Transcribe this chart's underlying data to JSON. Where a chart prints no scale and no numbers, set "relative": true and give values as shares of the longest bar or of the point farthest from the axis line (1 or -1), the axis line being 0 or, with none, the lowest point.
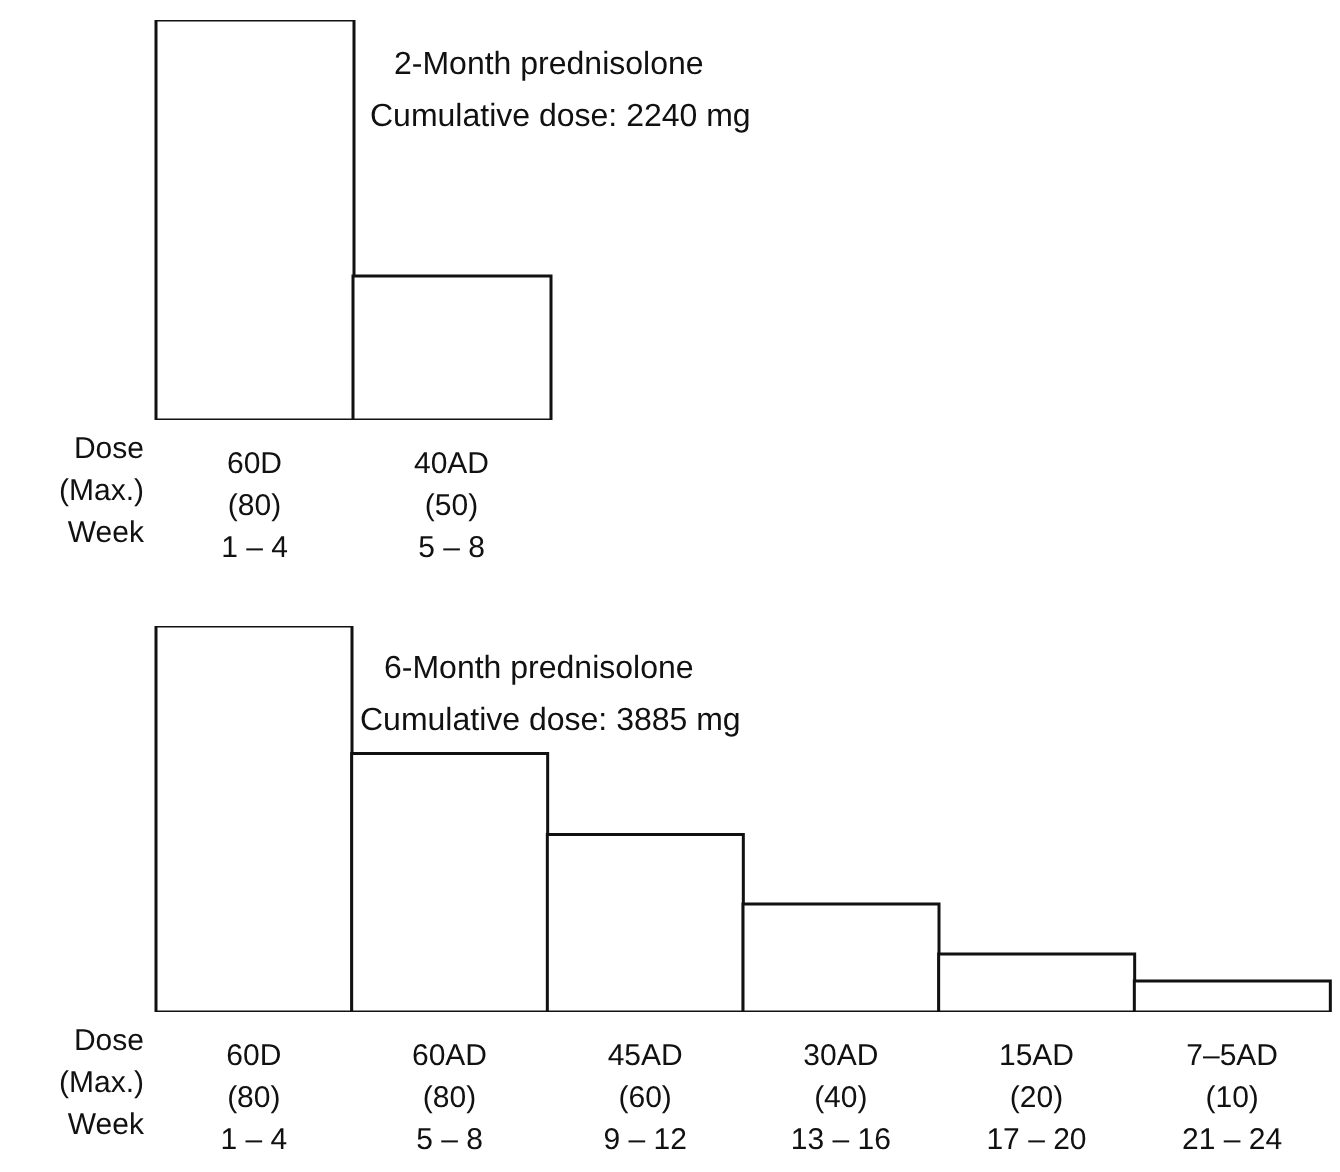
{
  "chart_data": [
    {
      "type": "bar",
      "title": "2-Month prednisolone",
      "subtitle": "Cumulative dose: 2240 mg",
      "relative": true,
      "color": "#ffffff",
      "categories": [
        "60D\n(80)\n1 – 4",
        "40AD\n(50)\n5 – 8"
      ],
      "values": [
        1,
        0.36
      ],
      "annotations": [
        "Dose",
        "(Max.)",
        "Week"
      ]
    },
    {
      "type": "bar",
      "title": "6-Month prednisolone",
      "subtitle": "Cumulative dose: 3885 mg",
      "relative": true,
      "color": "#ffffff",
      "categories": [
        "60D\n(80)\n1 – 4",
        "60AD\n(80)\n5 – 8",
        "45AD\n(60)\n9 – 12",
        "30AD\n(40)\n13 – 16",
        "15AD\n(20)\n17 – 20",
        "7–5AD\n(10)\n21 – 24"
      ],
      "values": [
        1,
        0.67,
        0.46,
        0.28,
        0.15,
        0.08
      ],
      "annotations": [
        "Dose",
        "(Max.)",
        "Week"
      ]
    }
  ]
}
